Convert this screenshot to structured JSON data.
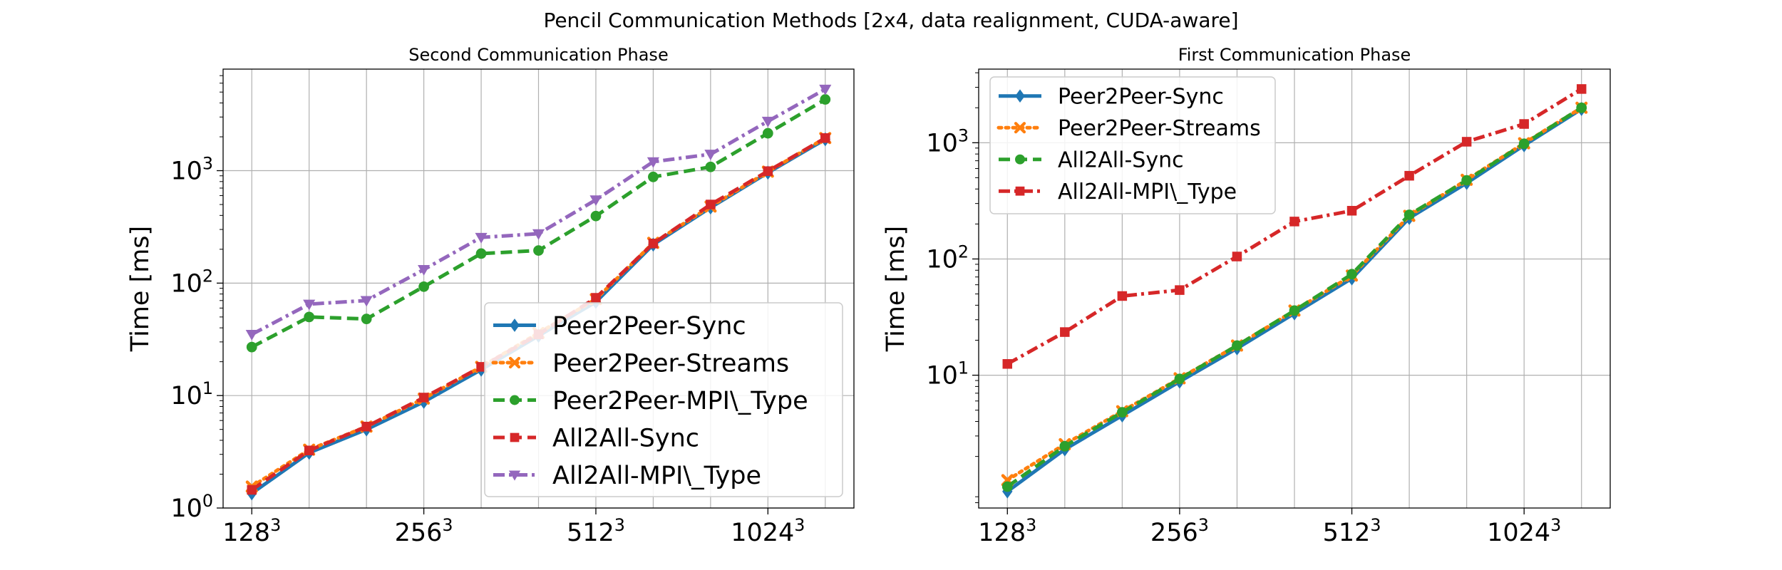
{
  "figure": {
    "suptitle": "Pencil Communication Methods [2x4, data realignment, CUDA-aware]"
  },
  "chart_data": [
    {
      "type": "line",
      "title": "Second Communication Phase",
      "xlabel": "",
      "ylabel": "Time [ms]",
      "yscale": "log",
      "ylim": [
        1,
        8000
      ],
      "xlim": [
        -0.5,
        10.5
      ],
      "grid": true,
      "legend_position": "lower-right",
      "xticks": [
        {
          "pos": 0,
          "base": "128",
          "exp": "3"
        },
        {
          "pos": 3,
          "base": "256",
          "exp": "3"
        },
        {
          "pos": 6,
          "base": "512",
          "exp": "3"
        },
        {
          "pos": 9,
          "base": "1024",
          "exp": "3"
        }
      ],
      "yticks": [
        {
          "value": 1,
          "base": "10",
          "exp": "0"
        },
        {
          "value": 10,
          "base": "10",
          "exp": "1"
        },
        {
          "value": 100,
          "base": "10",
          "exp": "2"
        },
        {
          "value": 1000,
          "base": "10",
          "exp": "3"
        }
      ],
      "x": [
        0,
        1,
        2,
        3,
        4,
        5,
        6,
        7,
        8,
        9,
        10
      ],
      "series": [
        {
          "name": "Peer2Peer-Sync",
          "color": "#1f77b4",
          "dash": "solid",
          "marker": "diamond",
          "values": [
            1.35,
            3.1,
            5.0,
            8.8,
            17,
            34,
            68,
            220,
            470,
            960,
            1900
          ]
        },
        {
          "name": "Peer2Peer-Streams",
          "color": "#ff7f0e",
          "dash": "dotted",
          "marker": "x",
          "values": [
            1.55,
            3.3,
            5.3,
            9.4,
            18,
            36,
            72,
            228,
            480,
            980,
            1950
          ]
        },
        {
          "name": "Peer2Peer-MPI\\_Type",
          "color": "#2ca02c",
          "dash": "dashed",
          "marker": "circle",
          "values": [
            27,
            50,
            48,
            93,
            183,
            195,
            395,
            880,
            1080,
            2150,
            4300
          ]
        },
        {
          "name": "All2All-Sync",
          "color": "#d62728",
          "dash": "dashed",
          "marker": "square",
          "values": [
            1.45,
            3.25,
            5.3,
            9.6,
            18,
            35,
            74,
            225,
            500,
            990,
            1950
          ]
        },
        {
          "name": "All2All-MPI\\_Type",
          "color": "#9467bd",
          "dash": "dashdot",
          "marker": "triangle-down",
          "values": [
            35,
            65,
            70,
            132,
            255,
            275,
            550,
            1200,
            1400,
            2750,
            5300
          ]
        }
      ]
    },
    {
      "type": "line",
      "title": "First Communication Phase",
      "xlabel": "",
      "ylabel": "Time [ms]",
      "yscale": "log",
      "ylim": [
        0.72,
        4300
      ],
      "xlim": [
        -0.5,
        10.5
      ],
      "grid": true,
      "legend_position": "upper-left",
      "xticks": [
        {
          "pos": 0,
          "base": "128",
          "exp": "3"
        },
        {
          "pos": 3,
          "base": "256",
          "exp": "3"
        },
        {
          "pos": 6,
          "base": "512",
          "exp": "3"
        },
        {
          "pos": 9,
          "base": "1024",
          "exp": "3"
        }
      ],
      "yticks": [
        {
          "value": 10,
          "base": "10",
          "exp": "1"
        },
        {
          "value": 100,
          "base": "10",
          "exp": "2"
        },
        {
          "value": 1000,
          "base": "10",
          "exp": "3"
        }
      ],
      "x": [
        0,
        1,
        2,
        3,
        4,
        5,
        6,
        7,
        8,
        9,
        10
      ],
      "series": [
        {
          "name": "Peer2Peer-Sync",
          "color": "#1f77b4",
          "dash": "solid",
          "marker": "diamond",
          "values": [
            1.0,
            2.3,
            4.5,
            8.8,
            17,
            34,
            68,
            225,
            450,
            950,
            1950
          ]
        },
        {
          "name": "Peer2Peer-Streams",
          "color": "#ff7f0e",
          "dash": "dotted",
          "marker": "x",
          "values": [
            1.25,
            2.55,
            4.9,
            9.4,
            18,
            36,
            72,
            235,
            480,
            990,
            2000
          ]
        },
        {
          "name": "All2All-Sync",
          "color": "#2ca02c",
          "dash": "dashed",
          "marker": "circle",
          "values": [
            1.1,
            2.45,
            4.8,
            9.3,
            18,
            36,
            74,
            240,
            475,
            980,
            2000
          ]
        },
        {
          "name": "All2All-MPI\\_Type",
          "color": "#d62728",
          "dash": "dashdot",
          "marker": "square",
          "values": [
            12.5,
            23.5,
            48,
            54,
            105,
            210,
            260,
            520,
            1020,
            1450,
            2900
          ]
        }
      ]
    }
  ]
}
